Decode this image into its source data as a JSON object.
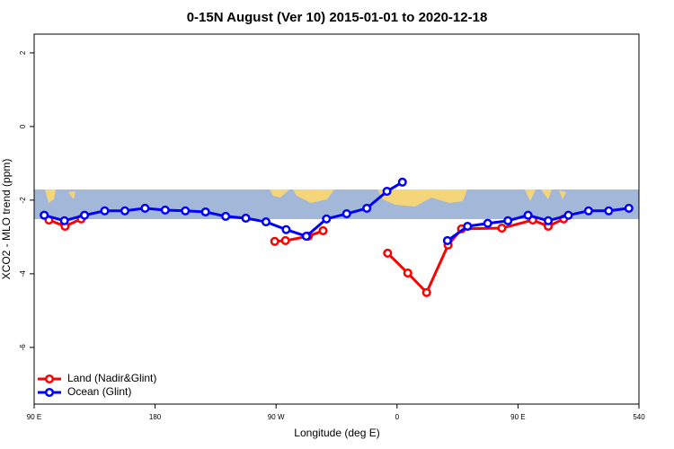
{
  "chart_data": {
    "type": "line",
    "title": "0-15N August (Ver 10)   2015-01-01 to 2020-12-18",
    "xlabel": "Longitude (deg E)",
    "ylabel": "XCO2 - MLO trend (ppm)",
    "xlim": [
      90,
      540
    ],
    "xticks": [
      {
        "value": 90,
        "label": "90 E"
      },
      180,
      {
        "value": 270,
        "label": "90 W"
      },
      {
        "value": 360,
        "label": "0"
      },
      {
        "value": 450,
        "label": "90 E"
      },
      540
    ],
    "ylim": [
      -7.54,
      2.51
    ],
    "yticks": [
      2,
      0,
      -2,
      -4,
      -6
    ],
    "legend": "bottom-left",
    "series": [
      {
        "name": "Land (Nadir&Glint)",
        "color": "#ff0000",
        "x": [
          101,
          113,
          125,
          200,
          269,
          277,
          294,
          305,
          330,
          353,
          368,
          382,
          398,
          408,
          438,
          461,
          472.5,
          484
        ],
        "values": [
          -2.54,
          -2.71,
          -2.51,
          null,
          -3.12,
          -3.1,
          -2.98,
          -2.83,
          null,
          -3.44,
          -3.98,
          -4.51,
          -3.22,
          -2.78,
          -2.76,
          -2.54,
          -2.71,
          -2.51
        ]
      },
      {
        "name": "Ocean (Glint)",
        "color": "#0000ff",
        "x": [
          97.5,
          112.5,
          127.5,
          142.5,
          157.5,
          172.5,
          187.5,
          202.5,
          217.5,
          232.5,
          247.5,
          262.5,
          277.5,
          292.5,
          307.5,
          322.5,
          337.5,
          352.5,
          364,
          382.5,
          397.5,
          412.5,
          427.5,
          442.5,
          457.5,
          472.5,
          487.5,
          502.5,
          517.5,
          532.5
        ],
        "values": [
          -2.41,
          -2.56,
          -2.41,
          -2.29,
          -2.29,
          -2.22,
          -2.27,
          -2.29,
          -2.32,
          -2.44,
          -2.49,
          -2.59,
          -2.8,
          -2.98,
          -2.51,
          -2.37,
          -2.22,
          -1.76,
          -1.51,
          null,
          -3.1,
          -2.71,
          -2.63,
          -2.56,
          -2.41,
          -2.56,
          -2.41,
          -2.29,
          -2.29,
          -2.22
        ]
      }
    ]
  }
}
